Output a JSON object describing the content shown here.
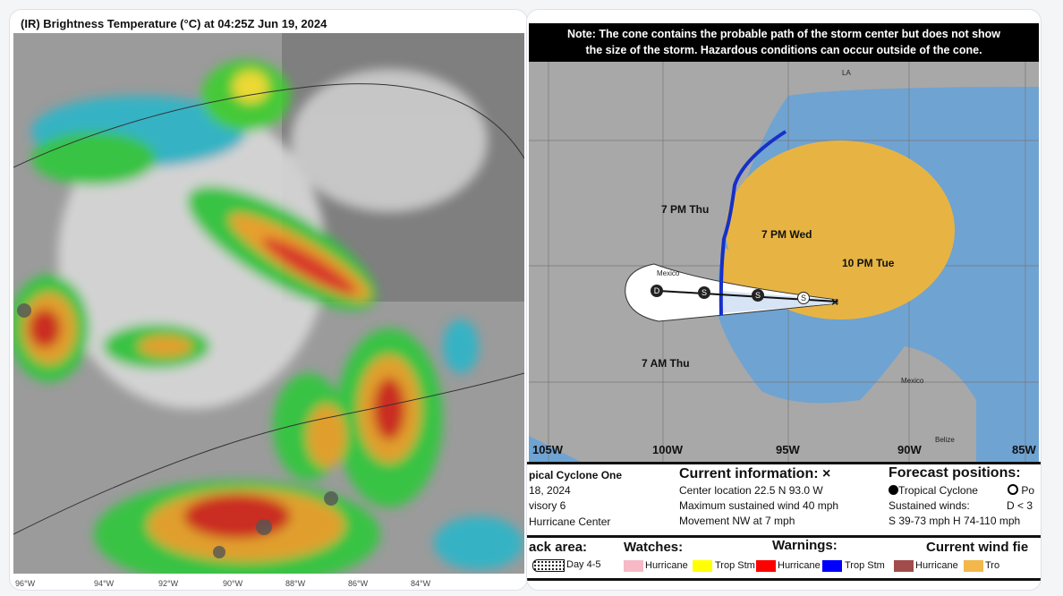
{
  "satellite": {
    "title": "(IR) Brightness Temperature (°C) at 04:25Z Jun 19, 2024",
    "lon_labels": [
      "96°W",
      "94°W",
      "92°W",
      "90°W",
      "88°W",
      "86°W",
      "84°W"
    ]
  },
  "cone": {
    "note_line1": "Note: The cone contains the probable path of the storm center but does not show",
    "note_line2": "the size of the storm. Hazardous conditions can occur outside of the cone.",
    "map_labels": {
      "la": "LA",
      "mexico1": "Mexico",
      "mexico2": "Mexico",
      "belize": "Belize"
    },
    "forecast_labels": [
      "7 PM Thu",
      "7 PM Wed",
      "10 PM Tue",
      "7 AM Thu"
    ],
    "point_markers": [
      "D",
      "S",
      "S",
      "S"
    ],
    "lon_labels": [
      "105W",
      "100W",
      "95W",
      "90W",
      "85W"
    ],
    "storm": {
      "name": "pical Cyclone One",
      "date": "18, 2024",
      "advisory": "visory 6",
      "center": "Hurricane Center"
    },
    "current": {
      "heading": "Current information: ×",
      "location": "Center location 22.5 N 93.0 W",
      "wind": "Maximum sustained wind 40 mph",
      "movement": "Movement NW at 7 mph"
    },
    "forecast": {
      "heading": "Forecast positions:",
      "tc": "Tropical Cyclone",
      "post": "Po",
      "sustained": "Sustained winds:",
      "d": "D < 3",
      "sh": "S 39-73 mph  H 74-110 mph"
    },
    "legend": {
      "track": "ack area:",
      "day45": "Day 4-5",
      "watches": "Watches:",
      "warnings": "Warnings:",
      "wind": "Current wind fie",
      "w_hurr": "Hurricane",
      "w_ts": "Trop Stm",
      "wa_hurr": "Hurricane",
      "wa_ts": "Trop Stm",
      "c_hurr": "Hurricane",
      "c_ts": "Tro"
    },
    "colors": {
      "watch_hurricane": "#f7b9c6",
      "watch_ts": "#ffff00",
      "warn_hurricane": "#ff0000",
      "warn_ts": "#0000ff",
      "wind_hurricane": "#a24b4b",
      "wind_ts": "#f2b84b",
      "cone": "#e7b443",
      "water": "#6fa3d2",
      "land": "#a8a8a8"
    }
  }
}
